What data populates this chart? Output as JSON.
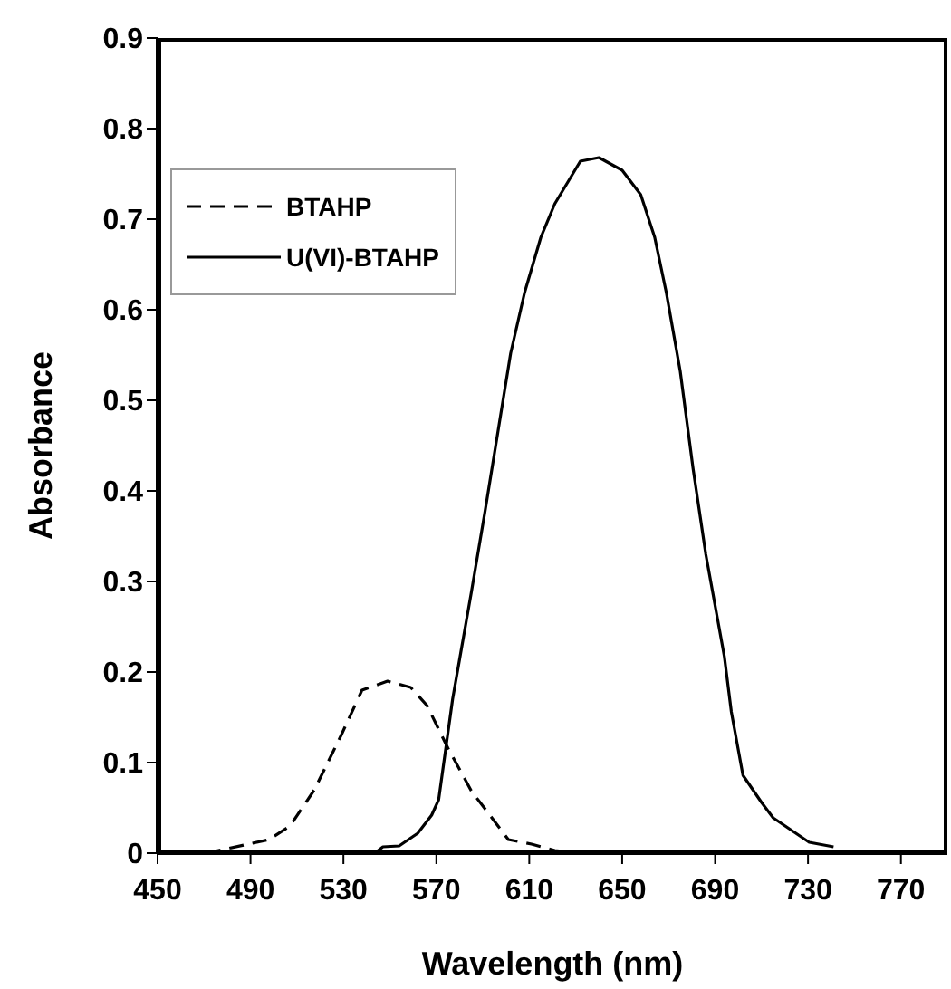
{
  "chart_data": {
    "type": "line",
    "xlabel": "Wavelength (nm)",
    "ylabel": "Absorbance",
    "xlim": [
      450,
      790
    ],
    "xticks": [
      450,
      490,
      530,
      570,
      610,
      650,
      690,
      730,
      770
    ],
    "ylim": [
      0,
      0.9
    ],
    "yticks": [
      0,
      0.1,
      0.2,
      0.3,
      0.4,
      0.5,
      0.6,
      0.7,
      0.8,
      0.9
    ],
    "grid": false,
    "legend": "top left",
    "marker": "none",
    "series": [
      {
        "name": "BTAHP",
        "color": "#000000",
        "line_style": "dashed",
        "x": [
          471,
          489,
          498,
          507,
          517.5,
          529,
          538,
          549,
          559,
          566,
          575,
          585,
          593,
          601,
          611,
          621,
          632
        ],
        "values": [
          0,
          0.01,
          0.015,
          0.03,
          0.07,
          0.13,
          0.18,
          0.19,
          0.183,
          0.163,
          0.116,
          0.069,
          0.042,
          0.015,
          0.01,
          0.003,
          0
        ]
      },
      {
        "name": "U(VI)-BTAHP",
        "color": "#000000",
        "line_style": "solid",
        "x": [
          543.5,
          547,
          554,
          562,
          568,
          571,
          577,
          585,
          591,
          602,
          608,
          615,
          621,
          632,
          640,
          650,
          658,
          664,
          669,
          675,
          680.5,
          686,
          694,
          697,
          702,
          710,
          715,
          730.5,
          741
        ],
        "values": [
          0,
          0.007,
          0.008,
          0.022,
          0.042,
          0.059,
          0.17,
          0.287,
          0.378,
          0.552,
          0.619,
          0.68,
          0.717,
          0.764,
          0.768,
          0.754,
          0.727,
          0.68,
          0.619,
          0.532,
          0.425,
          0.33,
          0.217,
          0.156,
          0.086,
          0.056,
          0.039,
          0.012,
          0.007
        ]
      }
    ]
  }
}
